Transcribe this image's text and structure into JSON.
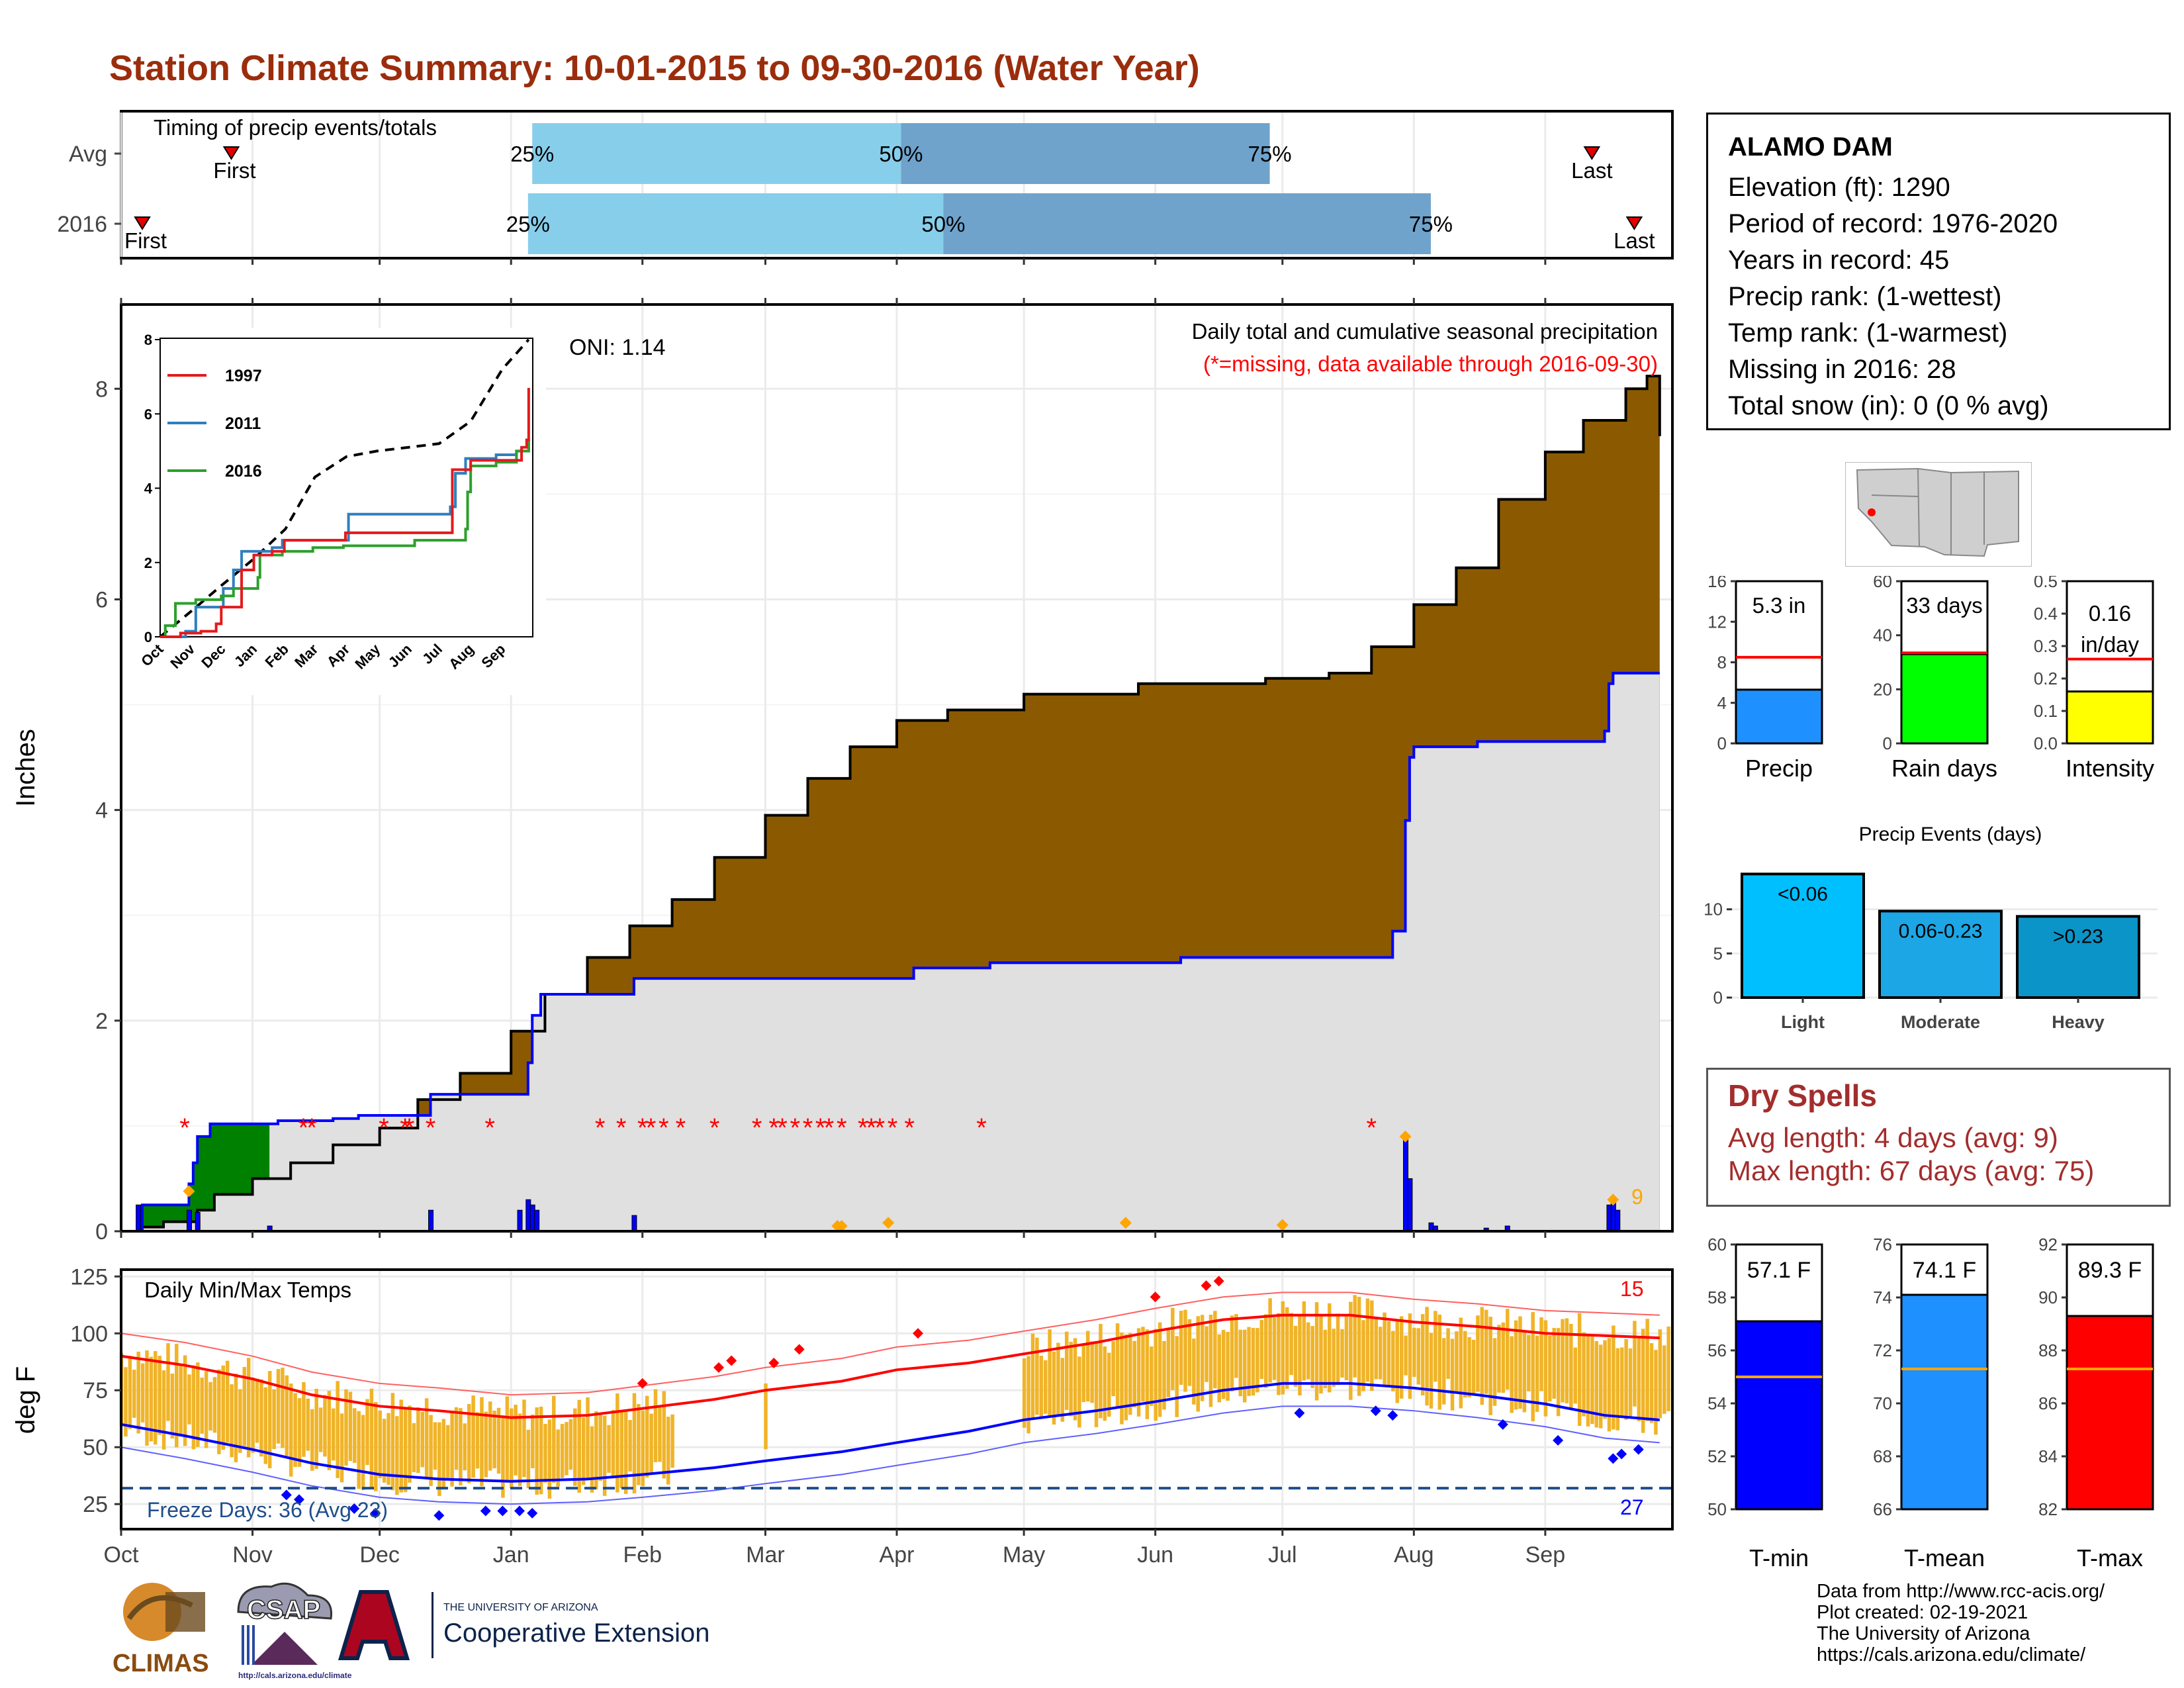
{
  "title": "Station Climate Summary: 10-01-2015 to 09-30-2016 (Water Year)",
  "station": {
    "name": "ALAMO DAM",
    "lines": [
      "Elevation (ft): 1290",
      "Period of record: 1976-2020",
      "Years in record: 45",
      "Precip rank:  (1-wettest)",
      "Temp rank:  (1-warmest)",
      "Missing in 2016: 28",
      "Total snow (in): 0 (0 % avg)"
    ]
  },
  "dry_spells": {
    "heading": "Dry Spells",
    "avg": "Avg length: 4 days (avg: 9)",
    "max": "Max length: 67 days (avg: 75)"
  },
  "credits": [
    "Data from http://www.rcc-acis.org/",
    "Plot created: 02-19-2021",
    "The University of Arizona",
    "https://cals.arizona.edu/climate/"
  ],
  "logos": {
    "climas": "CLIMAS",
    "csap": "CSAP",
    "csap_url": "http://cals.arizona.edu/climate",
    "ua_small": "THE UNIVERSITY OF ARIZONA",
    "ua_big": "Cooperative Extension"
  },
  "colors": {
    "precip_accum": "#8b5a00",
    "avg_fill": "#e0e0e0",
    "deficit": "#008000",
    "blue_line": "#0000ff",
    "temp_bar": "#f0b429",
    "tmax_line": "#ff0000",
    "tmin_line": "#0000ff",
    "bar_light": "#87ceeb",
    "bar_dark": "#6fa3cc"
  },
  "chart_data": [
    {
      "id": "timing",
      "type": "bar",
      "title": "Timing of precip events/totals",
      "categories": [
        "Avg",
        "2016"
      ],
      "rows": [
        {
          "label": "Avg",
          "q25_day": 97,
          "q50_day": 184,
          "q75_day": 271,
          "first_day": 26,
          "last_day": 347
        },
        {
          "label": "2016",
          "q25_day": 96,
          "q50_day": 194,
          "q75_day": 309,
          "first_day": 5,
          "last_day": 357
        }
      ],
      "quantile_labels": [
        "25%",
        "50%",
        "75%"
      ],
      "marker_labels": [
        "First",
        "Last"
      ]
    },
    {
      "id": "precip",
      "type": "area",
      "title": "Daily total and cumulative seasonal precipitation",
      "subtitle": "(*=missing, data available through 2016-09-30)",
      "annotation": "ONI: 1.14",
      "ylabel": "Inches",
      "ylim": [
        0,
        8.8
      ],
      "yticks": [
        0,
        2,
        4,
        6,
        8
      ],
      "xticks": [
        "Oct",
        "Nov",
        "Dec",
        "Jan",
        "Feb",
        "Mar",
        "Apr",
        "May",
        "Jun",
        "Jul",
        "Aug",
        "Sep"
      ],
      "month_start_days": [
        0,
        31,
        61,
        92,
        123,
        152,
        183,
        213,
        244,
        274,
        305,
        336
      ],
      "avg_cumulative": [
        [
          0,
          0
        ],
        [
          5,
          0.04
        ],
        [
          10,
          0.09
        ],
        [
          18,
          0.2
        ],
        [
          22,
          0.35
        ],
        [
          31,
          0.5
        ],
        [
          40,
          0.65
        ],
        [
          50,
          0.82
        ],
        [
          61,
          0.98
        ],
        [
          70,
          1.25
        ],
        [
          80,
          1.5
        ],
        [
          92,
          1.9
        ],
        [
          100,
          2.25
        ],
        [
          110,
          2.6
        ],
        [
          120,
          2.9
        ],
        [
          130,
          3.15
        ],
        [
          140,
          3.55
        ],
        [
          152,
          3.95
        ],
        [
          162,
          4.3
        ],
        [
          172,
          4.6
        ],
        [
          183,
          4.85
        ],
        [
          195,
          4.95
        ],
        [
          213,
          5.1
        ],
        [
          240,
          5.2
        ],
        [
          270,
          5.25
        ],
        [
          285,
          5.3
        ],
        [
          295,
          5.55
        ],
        [
          305,
          5.95
        ],
        [
          315,
          6.3
        ],
        [
          325,
          6.95
        ],
        [
          336,
          7.4
        ],
        [
          345,
          7.7
        ],
        [
          355,
          8.0
        ],
        [
          360,
          8.12
        ],
        [
          362,
          8.12
        ],
        [
          363,
          7.55
        ]
      ],
      "cumulative_2016": [
        [
          0,
          0
        ],
        [
          4,
          0.02
        ],
        [
          5,
          0.25
        ],
        [
          16,
          0.25
        ],
        [
          16,
          0.45
        ],
        [
          17,
          0.65
        ],
        [
          18,
          0.9
        ],
        [
          21,
          1.02
        ],
        [
          35,
          1.02
        ],
        [
          37,
          1.05
        ],
        [
          50,
          1.07
        ],
        [
          56,
          1.1
        ],
        [
          60,
          1.1
        ],
        [
          73,
          1.1
        ],
        [
          73,
          1.3
        ],
        [
          96,
          1.3
        ],
        [
          96,
          1.6
        ],
        [
          97,
          2.05
        ],
        [
          99,
          2.25
        ],
        [
          121,
          2.25
        ],
        [
          121,
          2.4
        ],
        [
          185,
          2.4
        ],
        [
          187,
          2.5
        ],
        [
          205,
          2.55
        ],
        [
          250,
          2.6
        ],
        [
          300,
          2.62
        ],
        [
          300,
          2.85
        ],
        [
          302,
          2.85
        ],
        [
          303,
          3.9
        ],
        [
          304,
          4.5
        ],
        [
          305,
          4.6
        ],
        [
          320,
          4.65
        ],
        [
          350,
          4.75
        ],
        [
          351,
          5.0
        ],
        [
          351,
          5.2
        ],
        [
          352,
          5.3
        ],
        [
          363,
          5.3
        ]
      ],
      "daily_2016": [
        [
          4,
          0.25
        ],
        [
          16,
          0.2
        ],
        [
          18,
          0.18
        ],
        [
          35,
          0.05
        ],
        [
          73,
          0.2
        ],
        [
          94,
          0.2
        ],
        [
          96,
          0.3
        ],
        [
          97,
          0.25
        ],
        [
          98,
          0.2
        ],
        [
          121,
          0.15
        ],
        [
          303,
          0.9
        ],
        [
          304,
          0.5
        ],
        [
          309,
          0.08
        ],
        [
          310,
          0.05
        ],
        [
          322,
          0.03
        ],
        [
          327,
          0.05
        ],
        [
          351,
          0.25
        ],
        [
          352,
          0.3
        ],
        [
          353,
          0.2
        ]
      ],
      "missing_days": [
        15,
        43,
        45,
        62,
        67,
        68,
        73,
        87,
        113,
        118,
        123,
        125,
        128,
        132,
        140,
        150,
        154,
        156,
        159,
        162,
        165,
        167,
        170,
        175,
        177,
        179,
        182,
        186,
        203,
        295
      ]
    },
    {
      "id": "temps",
      "type": "line",
      "title": "Daily Min/Max Temps",
      "ylabel": "deg F",
      "ylim": [
        14,
        128
      ],
      "yticks": [
        25,
        50,
        75,
        100,
        125
      ],
      "freeze_line": 32,
      "freeze_label": "Freeze Days: 36 (Avg 23)",
      "label_right_top": "15",
      "label_right_bottom": "27",
      "avg_tmax": [
        [
          0,
          90
        ],
        [
          15,
          86
        ],
        [
          31,
          80
        ],
        [
          45,
          73
        ],
        [
          61,
          68
        ],
        [
          75,
          66
        ],
        [
          92,
          63
        ],
        [
          110,
          64
        ],
        [
          123,
          67
        ],
        [
          140,
          71
        ],
        [
          152,
          75
        ],
        [
          170,
          79
        ],
        [
          183,
          84
        ],
        [
          200,
          87
        ],
        [
          213,
          91
        ],
        [
          230,
          96
        ],
        [
          244,
          101
        ],
        [
          260,
          106
        ],
        [
          274,
          108
        ],
        [
          290,
          108
        ],
        [
          305,
          105
        ],
        [
          320,
          103
        ],
        [
          336,
          100
        ],
        [
          350,
          99
        ],
        [
          363,
          98
        ]
      ],
      "avg_tmin": [
        [
          0,
          60
        ],
        [
          15,
          55
        ],
        [
          31,
          49
        ],
        [
          45,
          43
        ],
        [
          61,
          38
        ],
        [
          75,
          36
        ],
        [
          92,
          35
        ],
        [
          110,
          36
        ],
        [
          123,
          38
        ],
        [
          140,
          41
        ],
        [
          152,
          44
        ],
        [
          170,
          48
        ],
        [
          183,
          52
        ],
        [
          200,
          57
        ],
        [
          213,
          62
        ],
        [
          230,
          66
        ],
        [
          244,
          70
        ],
        [
          260,
          75
        ],
        [
          274,
          78
        ],
        [
          290,
          78
        ],
        [
          305,
          76
        ],
        [
          320,
          73
        ],
        [
          336,
          69
        ],
        [
          350,
          64
        ],
        [
          363,
          62
        ]
      ]
    },
    {
      "id": "precip_gauges",
      "type": "bar",
      "categories": [
        "Precip",
        "Rain days",
        "Intensity"
      ],
      "values": [
        5.3,
        33,
        0.16
      ],
      "averages": [
        8.5,
        33.5,
        0.26
      ],
      "labels": [
        "5.3 in",
        "33 days",
        "0.16 in/day"
      ],
      "ylims": [
        [
          0,
          16
        ],
        [
          0,
          60
        ],
        [
          0,
          0.5
        ]
      ],
      "yticks": [
        [
          "0",
          "4",
          "8",
          "12",
          "16"
        ],
        [
          "0",
          "20",
          "40",
          "60"
        ],
        [
          "0.0",
          "0.1",
          "0.2",
          "0.3",
          "0.4",
          "0.5"
        ]
      ]
    },
    {
      "id": "precip_events",
      "type": "bar",
      "title": "Precip Events (days)",
      "categories": [
        "Light",
        "Moderate",
        "Heavy"
      ],
      "values": [
        14,
        9.8,
        9.2
      ],
      "bar_labels": [
        "<0.06",
        "0.06-0.23",
        ">0.23"
      ],
      "ylim": [
        0,
        15
      ],
      "yticks": [
        0,
        5,
        10
      ]
    },
    {
      "id": "temp_gauges",
      "type": "bar",
      "categories": [
        "T-min",
        "T-mean",
        "T-max"
      ],
      "values": [
        57.1,
        74.1,
        89.3
      ],
      "averages": [
        55.0,
        71.3,
        87.3
      ],
      "labels": [
        "57.1 F",
        "74.1 F",
        "89.3 F"
      ],
      "ylims": [
        [
          50,
          60
        ],
        [
          66,
          76
        ],
        [
          82,
          92
        ]
      ],
      "yticks": [
        [
          "50",
          "52",
          "54",
          "56",
          "58",
          "60"
        ],
        [
          "66",
          "68",
          "70",
          "72",
          "74",
          "76"
        ],
        [
          "82",
          "84",
          "86",
          "88",
          "90",
          "92"
        ]
      ]
    }
  ]
}
